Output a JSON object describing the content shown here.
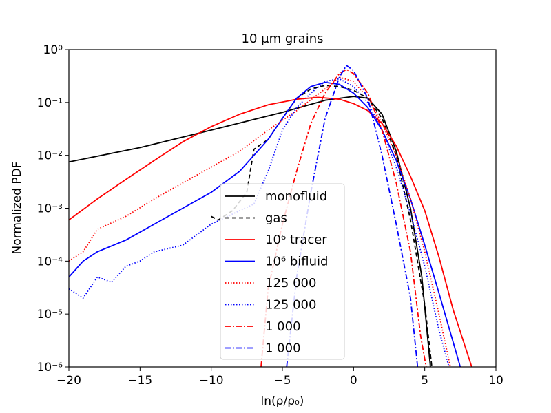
{
  "chart_data": {
    "type": "line",
    "title": "10 μm grains",
    "xlabel": "ln(ρ/ρ₀)",
    "ylabel": "Normalized PDF",
    "xlim": [
      -20,
      10
    ],
    "ylim_log10": [
      -6,
      0
    ],
    "y_scale": "log",
    "x_ticks": [
      -20,
      -15,
      -10,
      -5,
      0,
      5,
      10
    ],
    "x_tick_labels": [
      "−20",
      "−15",
      "−10",
      "−5",
      "0",
      "5",
      "10"
    ],
    "y_ticks_log10": [
      -6,
      -5,
      -4,
      -3,
      -2,
      -1,
      0
    ],
    "y_tick_labels": [
      "10⁻⁶",
      "10⁻⁵",
      "10⁻⁴",
      "10⁻³",
      "10⁻²",
      "10⁻¹",
      "10⁰"
    ],
    "legend_position": "center",
    "series": [
      {
        "name": "monofluid",
        "color": "#000000",
        "style": "solid",
        "points": [
          [
            -20,
            0.0075
          ],
          [
            -15,
            0.014
          ],
          [
            -10,
            0.03
          ],
          [
            -5,
            0.065
          ],
          [
            -2,
            0.11
          ],
          [
            0,
            0.13
          ],
          [
            1,
            0.12
          ],
          [
            2,
            0.06
          ],
          [
            3,
            0.012
          ],
          [
            4,
            0.001
          ],
          [
            4.8,
            5e-05
          ],
          [
            5.4,
            1e-06
          ]
        ]
      },
      {
        "name": "gas",
        "color": "#000000",
        "style": "dashed",
        "points": [
          [
            -10,
            0.0007
          ],
          [
            -9.5,
            0.0006
          ],
          [
            -8.5,
            0.0009
          ],
          [
            -7.5,
            0.002
          ],
          [
            -7,
            0.013
          ],
          [
            -6,
            0.02
          ],
          [
            -5,
            0.05
          ],
          [
            -4,
            0.12
          ],
          [
            -3,
            0.18
          ],
          [
            -2,
            0.21
          ],
          [
            -1,
            0.2
          ],
          [
            0,
            0.17
          ],
          [
            1,
            0.12
          ],
          [
            2,
            0.05
          ],
          [
            3,
            0.01
          ],
          [
            4,
            0.0006
          ],
          [
            5,
            1.5e-05
          ],
          [
            5.5,
            1e-06
          ]
        ]
      },
      {
        "name": "10⁶ tracer",
        "color": "#ff0000",
        "style": "solid",
        "points": [
          [
            -20,
            0.0006
          ],
          [
            -18,
            0.0015
          ],
          [
            -16,
            0.0035
          ],
          [
            -14,
            0.008
          ],
          [
            -12,
            0.018
          ],
          [
            -10,
            0.035
          ],
          [
            -8,
            0.06
          ],
          [
            -6,
            0.09
          ],
          [
            -4,
            0.115
          ],
          [
            -2.5,
            0.125
          ],
          [
            -1,
            0.115
          ],
          [
            0,
            0.095
          ],
          [
            1,
            0.07
          ],
          [
            2,
            0.04
          ],
          [
            3,
            0.015
          ],
          [
            4,
            0.004
          ],
          [
            5,
            0.0009
          ],
          [
            6,
            0.00012
          ],
          [
            7,
            1.2e-05
          ],
          [
            8.3,
            1e-06
          ]
        ]
      },
      {
        "name": "10⁶ bifluid",
        "color": "#0000ff",
        "style": "solid",
        "points": [
          [
            -20,
            5e-05
          ],
          [
            -19,
            0.0001
          ],
          [
            -18,
            0.00015
          ],
          [
            -16,
            0.00025
          ],
          [
            -14,
            0.0005
          ],
          [
            -12,
            0.001
          ],
          [
            -10,
            0.002
          ],
          [
            -8,
            0.005
          ],
          [
            -6,
            0.02
          ],
          [
            -5,
            0.05
          ],
          [
            -4,
            0.12
          ],
          [
            -3,
            0.2
          ],
          [
            -2,
            0.24
          ],
          [
            -1,
            0.22
          ],
          [
            0,
            0.15
          ],
          [
            1,
            0.08
          ],
          [
            2,
            0.03
          ],
          [
            3,
            0.008
          ],
          [
            4,
            0.0015
          ],
          [
            5,
            0.0002
          ],
          [
            6,
            2.5e-05
          ],
          [
            7.5,
            1e-06
          ]
        ]
      },
      {
        "name": "125 000",
        "color": "#ff0000",
        "style": "dotted",
        "points": [
          [
            -20,
            0.0001
          ],
          [
            -19,
            0.00015
          ],
          [
            -18,
            0.0004
          ],
          [
            -16,
            0.0007
          ],
          [
            -14,
            0.0015
          ],
          [
            -12,
            0.003
          ],
          [
            -10,
            0.006
          ],
          [
            -8,
            0.012
          ],
          [
            -6,
            0.03
          ],
          [
            -4,
            0.07
          ],
          [
            -2,
            0.18
          ],
          [
            -1,
            0.3
          ],
          [
            0,
            0.25
          ],
          [
            1,
            0.12
          ],
          [
            2,
            0.04
          ],
          [
            3,
            0.01
          ],
          [
            4,
            0.0015
          ],
          [
            5,
            0.00015
          ],
          [
            6,
            1e-05
          ],
          [
            6.8,
            1e-06
          ]
        ]
      },
      {
        "name": "125 000",
        "color": "#0000ff",
        "style": "dotted",
        "points": [
          [
            -20,
            3e-05
          ],
          [
            -19,
            2e-05
          ],
          [
            -18,
            5e-05
          ],
          [
            -17,
            4e-05
          ],
          [
            -16,
            8e-05
          ],
          [
            -15,
            0.0001
          ],
          [
            -14,
            0.00015
          ],
          [
            -12,
            0.0002
          ],
          [
            -10,
            0.0005
          ],
          [
            -8,
            0.0009
          ],
          [
            -7,
            0.0012
          ],
          [
            -6,
            0.005
          ],
          [
            -5,
            0.03
          ],
          [
            -4,
            0.08
          ],
          [
            -3,
            0.15
          ],
          [
            -2,
            0.25
          ],
          [
            -1,
            0.28
          ],
          [
            0,
            0.2
          ],
          [
            1,
            0.1
          ],
          [
            2,
            0.03
          ],
          [
            3,
            0.006
          ],
          [
            4,
            0.0008
          ],
          [
            5,
            8e-05
          ],
          [
            6,
            5e-06
          ],
          [
            6.7,
            1e-06
          ]
        ]
      },
      {
        "name": "1 000",
        "color": "#ff0000",
        "style": "dashdot",
        "points": [
          [
            -6.5,
            1e-06
          ],
          [
            -6,
            3e-05
          ],
          [
            -5,
            0.0005
          ],
          [
            -4,
            0.005
          ],
          [
            -3,
            0.04
          ],
          [
            -2,
            0.15
          ],
          [
            -1,
            0.35
          ],
          [
            -0.5,
            0.42
          ],
          [
            0,
            0.35
          ],
          [
            1,
            0.15
          ],
          [
            2,
            0.03
          ],
          [
            3,
            0.003
          ],
          [
            4,
            0.00015
          ],
          [
            4.7,
            4e-06
          ],
          [
            5.1,
            1e-06
          ]
        ]
      },
      {
        "name": "1 000",
        "color": "#0000ff",
        "style": "dashdot",
        "points": [
          [
            -4.7,
            1e-06
          ],
          [
            -4,
            5e-05
          ],
          [
            -3,
            0.002
          ],
          [
            -2,
            0.05
          ],
          [
            -1,
            0.3
          ],
          [
            -0.5,
            0.5
          ],
          [
            0,
            0.4
          ],
          [
            1,
            0.12
          ],
          [
            2,
            0.01
          ],
          [
            3,
            0.0005
          ],
          [
            4,
            2e-05
          ],
          [
            4.5,
            1e-06
          ]
        ]
      }
    ]
  }
}
